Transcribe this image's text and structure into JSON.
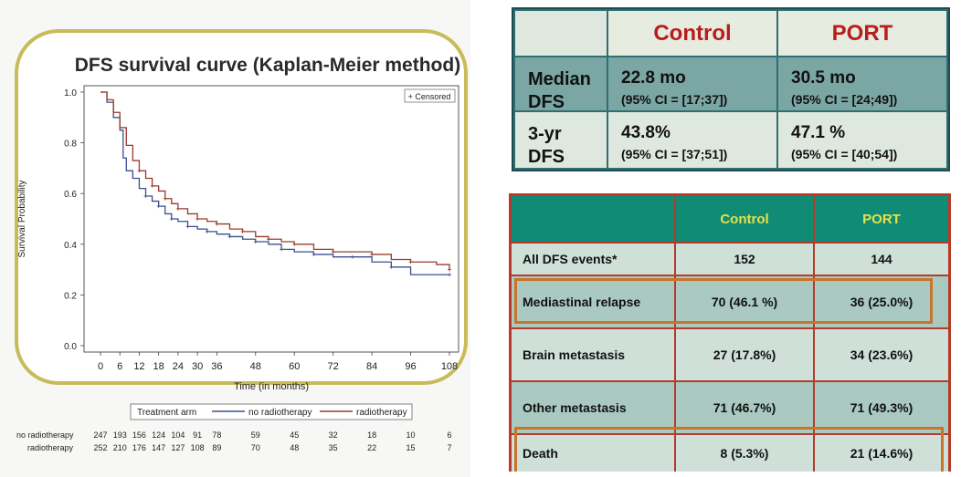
{
  "chart_data": {
    "type": "line",
    "title": "DFS survival curve (Kaplan-Meier method)",
    "xlabel": "Time (in months)",
    "ylabel": "Survival Probability",
    "xlim": [
      0,
      108
    ],
    "ylim": [
      0,
      1.0
    ],
    "x_ticks": [
      0,
      6,
      12,
      18,
      24,
      30,
      36,
      48,
      60,
      72,
      84,
      96,
      108
    ],
    "x_tick_labels": [
      "0",
      "6",
      "12",
      "18",
      "24",
      "30",
      "36",
      "48",
      "60",
      "72",
      "84",
      "96",
      "108"
    ],
    "y_ticks": [
      0.0,
      0.2,
      0.4,
      0.6,
      0.8,
      1.0
    ],
    "y_tick_labels": [
      "0.0",
      "0.2",
      "0.4",
      "0.6",
      "0.8",
      "1.0"
    ],
    "censored_label": "+ Censored",
    "legend_title": "Treatment arm",
    "series": [
      {
        "name": "no radiotherapy",
        "color": "#3b4f8c",
        "points": [
          [
            0,
            1.0
          ],
          [
            2,
            0.96
          ],
          [
            4,
            0.9
          ],
          [
            6,
            0.85
          ],
          [
            7,
            0.74
          ],
          [
            8,
            0.69
          ],
          [
            10,
            0.66
          ],
          [
            12,
            0.62
          ],
          [
            14,
            0.59
          ],
          [
            16,
            0.57
          ],
          [
            18,
            0.55
          ],
          [
            20,
            0.52
          ],
          [
            22,
            0.5
          ],
          [
            24,
            0.49
          ],
          [
            27,
            0.47
          ],
          [
            30,
            0.46
          ],
          [
            33,
            0.45
          ],
          [
            36,
            0.44
          ],
          [
            40,
            0.43
          ],
          [
            44,
            0.42
          ],
          [
            48,
            0.41
          ],
          [
            52,
            0.4
          ],
          [
            56,
            0.38
          ],
          [
            60,
            0.37
          ],
          [
            66,
            0.36
          ],
          [
            72,
            0.35
          ],
          [
            78,
            0.35
          ],
          [
            84,
            0.33
          ],
          [
            90,
            0.31
          ],
          [
            96,
            0.28
          ],
          [
            108,
            0.28
          ]
        ]
      },
      {
        "name": "radiotherapy",
        "color": "#9b3a2c",
        "points": [
          [
            0,
            1.0
          ],
          [
            2,
            0.97
          ],
          [
            4,
            0.92
          ],
          [
            6,
            0.86
          ],
          [
            8,
            0.79
          ],
          [
            10,
            0.73
          ],
          [
            12,
            0.69
          ],
          [
            14,
            0.66
          ],
          [
            16,
            0.63
          ],
          [
            18,
            0.61
          ],
          [
            20,
            0.58
          ],
          [
            22,
            0.56
          ],
          [
            24,
            0.54
          ],
          [
            27,
            0.52
          ],
          [
            30,
            0.5
          ],
          [
            33,
            0.49
          ],
          [
            36,
            0.48
          ],
          [
            40,
            0.46
          ],
          [
            44,
            0.45
          ],
          [
            48,
            0.43
          ],
          [
            52,
            0.42
          ],
          [
            56,
            0.41
          ],
          [
            60,
            0.4
          ],
          [
            66,
            0.38
          ],
          [
            72,
            0.37
          ],
          [
            78,
            0.37
          ],
          [
            84,
            0.36
          ],
          [
            90,
            0.34
          ],
          [
            96,
            0.33
          ],
          [
            104,
            0.32
          ],
          [
            108,
            0.3
          ]
        ]
      }
    ],
    "risk_table": {
      "times": [
        0,
        6,
        12,
        18,
        24,
        30,
        36,
        48,
        60,
        72,
        84,
        96,
        108
      ],
      "rows": [
        {
          "label": "no radiotherapy",
          "values": [
            "247",
            "193",
            "156",
            "124",
            "104",
            "91",
            "78",
            "59",
            "45",
            "32",
            "18",
            "10",
            "6"
          ]
        },
        {
          "label": "radiotherapy",
          "values": [
            "252",
            "210",
            "176",
            "147",
            "127",
            "108",
            "89",
            "70",
            "48",
            "35",
            "22",
            "15",
            "7"
          ]
        }
      ]
    }
  },
  "median_table": {
    "header": [
      "Control",
      "PORT"
    ],
    "rows": [
      {
        "label_line1": "Median",
        "label_line2": "DFS",
        "control_main": "22.8 mo",
        "control_sub": "(95% CI = [17;37])",
        "port_main": "30.5 mo",
        "port_sub": "(95% CI = [24;49])"
      },
      {
        "label_line1": "3-yr",
        "label_line2": "DFS",
        "control_main": "43.8%",
        "control_sub": "(95% CI = [37;51])",
        "port_main": "47.1 %",
        "port_sub": "(95% CI = [40;54])"
      }
    ]
  },
  "events_table": {
    "header": [
      "Control",
      "PORT"
    ],
    "rows": [
      {
        "label": "All DFS events*",
        "control": "152",
        "port": "144"
      },
      {
        "label": "Mediastinal relapse",
        "control": "70 (46.1 %)",
        "port": "36 (25.0%)"
      },
      {
        "label": "Brain metastasis",
        "control": "27 (17.8%)",
        "port": "34 (23.6%)"
      },
      {
        "label": "Other metastasis",
        "control": "71 (46.7%)",
        "port": "71 (49.3%)"
      },
      {
        "label": "Death",
        "control": "8 (5.3%)",
        "port": "21 (14.6%)"
      }
    ],
    "highlight_color": "#c8742a"
  }
}
